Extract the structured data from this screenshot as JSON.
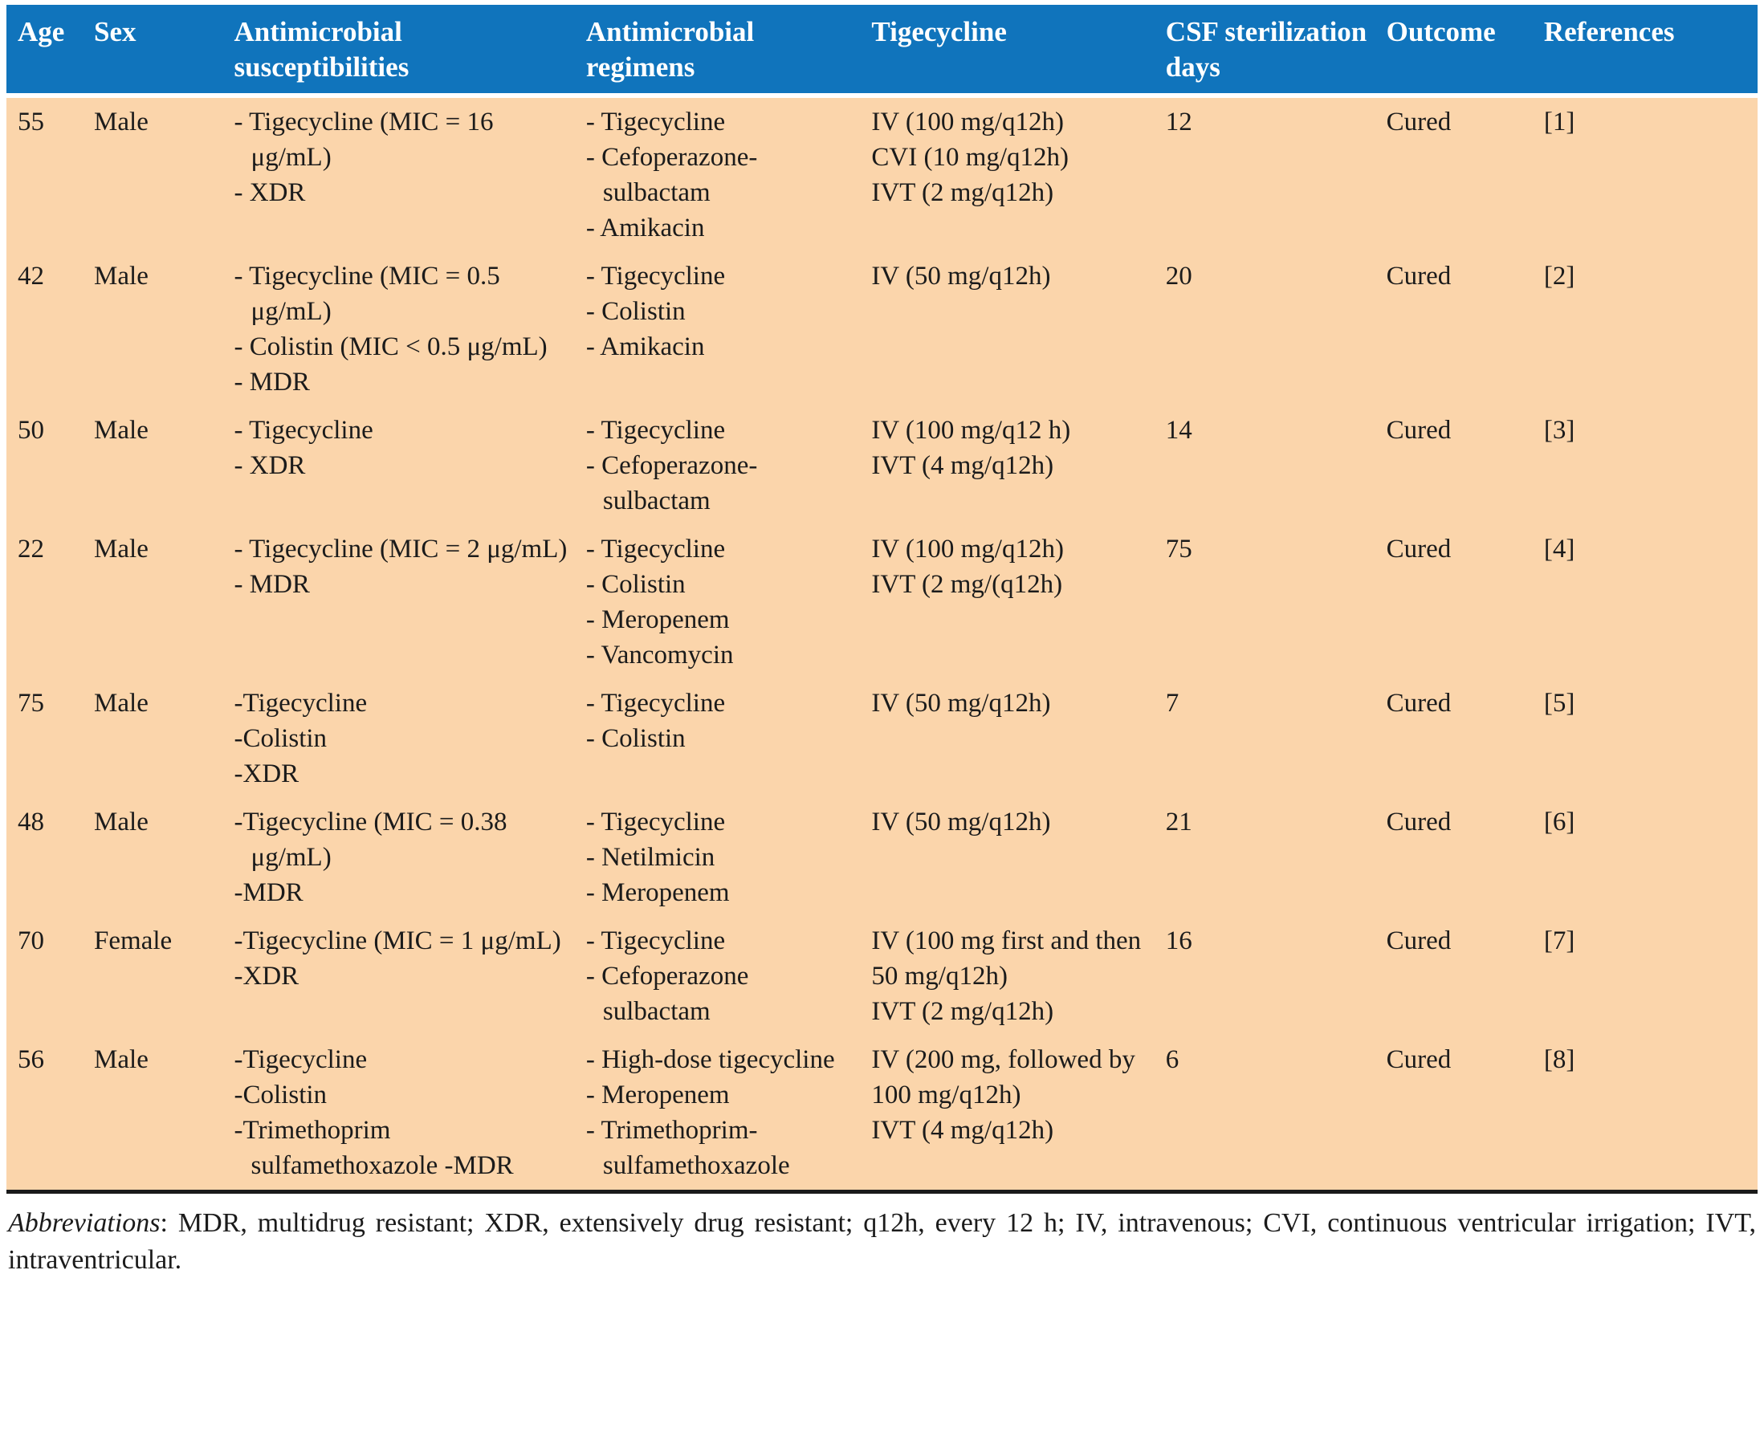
{
  "colors": {
    "header_bg": "#1074BC",
    "header_text": "#FFFFFF",
    "body_bg": "#FBD5AB",
    "rule": "#1A1A1A",
    "text": "#1B1B1B"
  },
  "table": {
    "columns": [
      {
        "key": "age",
        "label": "Age"
      },
      {
        "key": "sex",
        "label": "Sex"
      },
      {
        "key": "susceptibilities",
        "label": "Antimicrobial susceptibilities"
      },
      {
        "key": "regimens",
        "label": "Antimicrobial regimens"
      },
      {
        "key": "tigecycline",
        "label": "Tigecycline"
      },
      {
        "key": "csf-days",
        "label": "CSF sterilization days"
      },
      {
        "key": "outcome",
        "label": "Outcome"
      },
      {
        "key": "references",
        "label": "References"
      }
    ],
    "rows": [
      {
        "age": "55",
        "sex": "Male",
        "susceptibilities": [
          "- Tigecycline (MIC = 16 μg/mL)",
          "- XDR"
        ],
        "regimens": [
          "- Tigecycline",
          "- Cefoperazone-sulbactam",
          "- Amikacin"
        ],
        "tigecycline": [
          "IV (100 mg/q12h)",
          "CVI (10 mg/q12h)",
          "IVT (2 mg/q12h)"
        ],
        "csf_days": "12",
        "outcome": "Cured",
        "reference": "[1]"
      },
      {
        "age": "42",
        "sex": "Male",
        "susceptibilities": [
          "- Tigecycline (MIC = 0.5 μg/mL)",
          "- Colistin (MIC < 0.5 μg/mL)",
          "- MDR"
        ],
        "regimens": [
          "- Tigecycline",
          "- Colistin",
          "- Amikacin"
        ],
        "tigecycline": [
          "IV (50 mg/q12h)"
        ],
        "csf_days": "20",
        "outcome": "Cured",
        "reference": "[2]"
      },
      {
        "age": "50",
        "sex": "Male",
        "susceptibilities": [
          "- Tigecycline",
          "- XDR"
        ],
        "regimens": [
          "- Tigecycline",
          "- Cefoperazone-sulbactam"
        ],
        "tigecycline": [
          "IV (100 mg/q12 h)",
          "IVT (4 mg/q12h)"
        ],
        "csf_days": "14",
        "outcome": "Cured",
        "reference": "[3]"
      },
      {
        "age": "22",
        "sex": "Male",
        "susceptibilities": [
          "- Tigecycline (MIC = 2 μg/mL)",
          "- MDR"
        ],
        "regimens": [
          "- Tigecycline",
          "- Colistin",
          "- Meropenem",
          "- Vancomycin"
        ],
        "tigecycline": [
          "IV (100 mg/q12h)",
          "IVT (2 mg/(q12h)"
        ],
        "csf_days": "75",
        "outcome": "Cured",
        "reference": "[4]"
      },
      {
        "age": "75",
        "sex": "Male",
        "susceptibilities": [
          "-Tigecycline",
          "-Colistin",
          "-XDR"
        ],
        "regimens": [
          "- Tigecycline",
          "- Colistin"
        ],
        "tigecycline": [
          "IV (50 mg/q12h)"
        ],
        "csf_days": "7",
        "outcome": "Cured",
        "reference": "[5]"
      },
      {
        "age": "48",
        "sex": "Male",
        "susceptibilities": [
          "-Tigecycline (MIC = 0.38 μg/mL)",
          "-MDR"
        ],
        "regimens": [
          "- Tigecycline",
          "- Netilmicin",
          "- Meropenem"
        ],
        "tigecycline": [
          "IV (50 mg/q12h)"
        ],
        "csf_days": "21",
        "outcome": "Cured",
        "reference": "[6]"
      },
      {
        "age": "70",
        "sex": "Female",
        "susceptibilities": [
          "-Tigecycline (MIC = 1 μg/mL)",
          "-XDR"
        ],
        "regimens": [
          "- Tigecycline",
          "- Cefoperazone sulbactam"
        ],
        "tigecycline": [
          "IV (100 mg first and then 50 mg/q12h)",
          "IVT (2 mg/q12h)"
        ],
        "csf_days": "16",
        "outcome": "Cured",
        "reference": "[7]"
      },
      {
        "age": "56",
        "sex": "Male",
        "susceptibilities": [
          "-Tigecycline",
          "-Colistin",
          "-Trimethoprim sulfamethoxazole -MDR"
        ],
        "regimens": [
          "- High-dose tigecycline",
          "- Meropenem",
          "- Trimethoprim-sulfamethoxazole"
        ],
        "tigecycline": [
          "IV (200 mg, followed by 100 mg/q12h)",
          "IVT (4 mg/q12h)"
        ],
        "csf_days": "6",
        "outcome": "Cured",
        "reference": "[8]"
      }
    ]
  },
  "footnote": {
    "lead": "Abbreviations",
    "rest": ": MDR, multidrug resistant; XDR, extensively drug resistant; q12h, every 12 h; IV, intravenous; CVI, continuous ventricular irrigation; IVT, intraventricular."
  }
}
